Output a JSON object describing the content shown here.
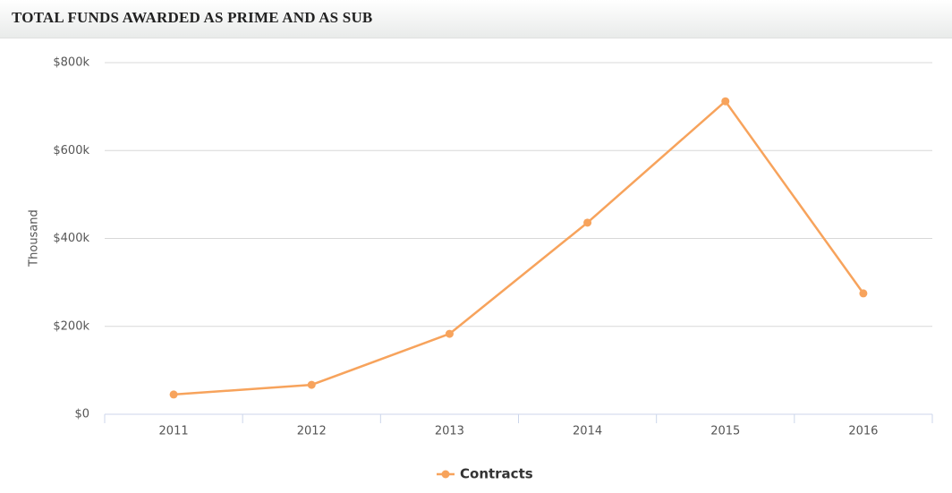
{
  "chart_data": {
    "type": "line",
    "title": "TOTAL FUNDS AWARDED AS PRIME AND AS SUB",
    "y_label": "Thousand",
    "categories": [
      "2011",
      "2012",
      "2013",
      "2014",
      "2015",
      "2016"
    ],
    "series": [
      {
        "name": "Contracts",
        "color": "#f7a35c",
        "values": [
          45,
          67,
          183,
          436,
          712,
          275
        ]
      }
    ],
    "ylim": [
      0,
      800
    ],
    "yticks": [
      {
        "value": 0,
        "label": "$0"
      },
      {
        "value": 200,
        "label": "$200k"
      },
      {
        "value": 400,
        "label": "$400k"
      },
      {
        "value": 600,
        "label": "$600k"
      },
      {
        "value": 800,
        "label": "$800k"
      }
    ],
    "grid": true,
    "legend": "bottom"
  }
}
